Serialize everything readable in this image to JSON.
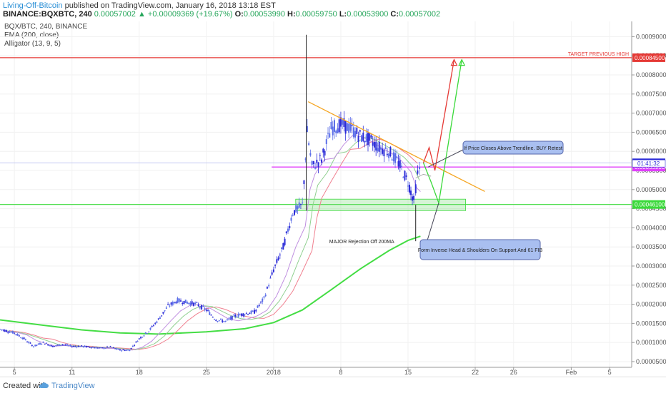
{
  "header": {
    "author": "Living-Off-Bitcoin",
    "published": "published on TradingView.com, January 16, 2018 13:18 EST",
    "symbol": "BINANCE:BQXBTC, 240",
    "last": "0.00057002",
    "change_arrow": "▲",
    "change": "+0.00009369 (+19.67%)",
    "o_label": "O:",
    "o_value": "0.00053990",
    "h_label": "H:",
    "h_value": "0.00059750",
    "l_label": "L:",
    "l_value": "0.00053900",
    "c_label": "C:",
    "c_value": "0.00057002"
  },
  "legend": {
    "title": "BQX/BTC, 240, BINANCE",
    "ema": "EMA (200, close)",
    "alligator": "Alligator (13, 9, 5)"
  },
  "footer": {
    "created_with": "Created with",
    "brand": "TradingView"
  },
  "colors": {
    "up": "#5b6ee8",
    "down": "#2b2bd8",
    "ema": "#44dd44",
    "resistance": "#e53935",
    "support": "#3ad93a",
    "magenta": "#e040fb",
    "trendline": "#f5a623",
    "callout_bg": "#a9bff0",
    "callout_border": "#5566aa"
  },
  "chart_data": {
    "type": "line",
    "ylim": [
      3.5e-05,
      0.00094
    ],
    "yticks": [
      5e-05,
      0.0001,
      0.00015,
      0.0002,
      0.00025,
      0.0003,
      0.00035,
      0.0004,
      0.00045,
      0.0005,
      0.00055,
      0.0006,
      0.00065,
      0.0007,
      0.00075,
      0.0008,
      0.00085,
      0.0009
    ],
    "ytick_labels": [
      "0.00005000",
      "0.00010000",
      "0.00015000",
      "0.00020000",
      "0.00025000",
      "0.00030000",
      "0.00035000",
      "0.00040000",
      "0.00045000",
      "0.00050000",
      "0.00055000",
      "0.00060000",
      "0.00065000",
      "0.00070000",
      "0.00075000",
      "0.00080000",
      "0.00085000",
      "0.00090000"
    ],
    "xticks": [
      {
        "day": 5,
        "label": "5"
      },
      {
        "day": 11,
        "label": "11"
      },
      {
        "day": 18,
        "label": "18"
      },
      {
        "day": 25,
        "label": "25"
      },
      {
        "day": 32,
        "label": "2018"
      },
      {
        "day": 39,
        "label": "8"
      },
      {
        "day": 46,
        "label": "15"
      },
      {
        "day": 53,
        "label": "22"
      },
      {
        "day": 57,
        "label": "26"
      },
      {
        "day": 63,
        "label": "Feb"
      },
      {
        "day": 67,
        "label": "5"
      }
    ],
    "xlim": [
      3.5,
      69.3
    ],
    "price_labels": [
      {
        "value": 0.000845,
        "text": "0.00084500",
        "color": "#e53935"
      },
      {
        "value": 0.00057002,
        "text": "0.00057002",
        "color": "#2b2bd8"
      },
      {
        "value": 0.000559,
        "text": "0.00055900",
        "color": "#e040fb"
      },
      {
        "value": 0.000461,
        "text": "0.00046100",
        "color": "#3ad93a"
      }
    ],
    "countdown": "01:41:32",
    "price_series": [
      {
        "day": 3.5,
        "value": 0.000135
      },
      {
        "day": 5,
        "value": 0.000125
      },
      {
        "day": 6,
        "value": 0.00011
      },
      {
        "day": 7,
        "value": 9e-05
      },
      {
        "day": 8,
        "value": 0.0001
      },
      {
        "day": 9,
        "value": 9e-05
      },
      {
        "day": 10,
        "value": 9.5e-05
      },
      {
        "day": 11,
        "value": 9e-05
      },
      {
        "day": 12,
        "value": 9e-05
      },
      {
        "day": 13,
        "value": 8.8e-05
      },
      {
        "day": 14,
        "value": 8.5e-05
      },
      {
        "day": 15,
        "value": 8.8e-05
      },
      {
        "day": 16,
        "value": 8e-05
      },
      {
        "day": 17,
        "value": 8e-05
      },
      {
        "day": 18,
        "value": 0.00011
      },
      {
        "day": 19,
        "value": 0.00013
      },
      {
        "day": 20,
        "value": 0.00016
      },
      {
        "day": 21,
        "value": 0.000195
      },
      {
        "day": 22,
        "value": 0.00021
      },
      {
        "day": 23,
        "value": 0.000205
      },
      {
        "day": 24,
        "value": 0.0002
      },
      {
        "day": 25,
        "value": 0.000185
      },
      {
        "day": 26,
        "value": 0.00016
      },
      {
        "day": 27,
        "value": 0.000155
      },
      {
        "day": 28,
        "value": 0.00017
      },
      {
        "day": 29,
        "value": 0.000175
      },
      {
        "day": 30,
        "value": 0.00018
      },
      {
        "day": 31,
        "value": 0.000215
      },
      {
        "day": 32,
        "value": 0.00029
      },
      {
        "day": 33,
        "value": 0.00035
      },
      {
        "day": 34,
        "value": 0.00044
      },
      {
        "day": 35,
        "value": 0.00046
      },
      {
        "day": 35.5,
        "value": 0.00065
      },
      {
        "day": 36,
        "value": 0.00056
      },
      {
        "day": 37,
        "value": 0.00058
      },
      {
        "day": 38,
        "value": 0.00066
      },
      {
        "day": 39,
        "value": 0.00067
      },
      {
        "day": 40,
        "value": 0.00066
      },
      {
        "day": 41,
        "value": 0.00064
      },
      {
        "day": 42,
        "value": 0.00063
      },
      {
        "day": 43,
        "value": 0.00061
      },
      {
        "day": 44,
        "value": 0.0006
      },
      {
        "day": 45,
        "value": 0.00057
      },
      {
        "day": 46,
        "value": 0.00052
      },
      {
        "day": 46.6,
        "value": 0.00047
      },
      {
        "day": 47,
        "value": 0.00054
      },
      {
        "day": 47.4,
        "value": 0.00057
      }
    ],
    "ema_series": [
      {
        "day": 3.5,
        "value": 0.000159
      },
      {
        "day": 8,
        "value": 0.000145
      },
      {
        "day": 12,
        "value": 0.000133
      },
      {
        "day": 16,
        "value": 0.000125
      },
      {
        "day": 20,
        "value": 0.000122
      },
      {
        "day": 25,
        "value": 0.000128
      },
      {
        "day": 29,
        "value": 0.000136
      },
      {
        "day": 32,
        "value": 0.000152
      },
      {
        "day": 35,
        "value": 0.000185
      },
      {
        "day": 38,
        "value": 0.000238
      },
      {
        "day": 41,
        "value": 0.000292
      },
      {
        "day": 44,
        "value": 0.00034
      },
      {
        "day": 46,
        "value": 0.000367
      },
      {
        "day": 47.3,
        "value": 0.000378
      }
    ]
  },
  "annotations": {
    "target": "TARGET PREVIOUS HIGH",
    "rejection": "MAJOR Rejection Off 200MA",
    "callout1": "If Price Closes Above Trendline. BUY Retest",
    "callout2": "Form Inverse Head & Shoulders On Support And 61 FIB"
  }
}
